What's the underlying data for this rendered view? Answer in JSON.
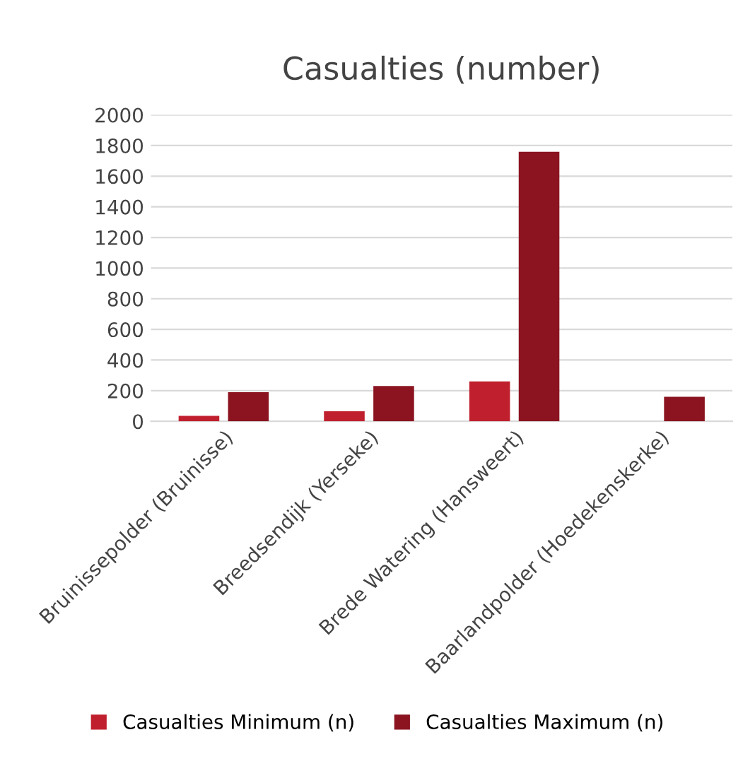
{
  "chart_data": {
    "type": "bar",
    "title": "Casualties (number)",
    "categories": [
      "Bruinissepolder (Bruinisse)",
      "Breedsendijk (Yerseke)",
      "Brede Watering (Hansweert)",
      "Baarlandpolder (Hoedekenskerke)"
    ],
    "series": [
      {
        "name": "Casualties Minimum (n)",
        "color": "#c0202e",
        "values": [
          35,
          65,
          260,
          null
        ]
      },
      {
        "name": "Casualties Maximum (n)",
        "color": "#8b1420",
        "values": [
          190,
          230,
          1760,
          160
        ]
      }
    ],
    "ylim": [
      0,
      2000
    ],
    "yticks": [
      0,
      200,
      400,
      600,
      800,
      1000,
      1200,
      1400,
      1600,
      1800,
      2000
    ],
    "grid": "y",
    "legend": "bottom"
  }
}
